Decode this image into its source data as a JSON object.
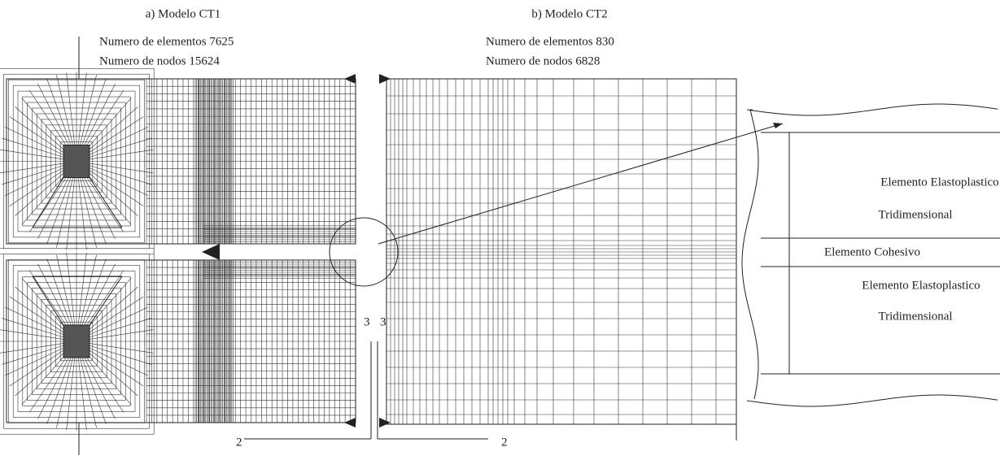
{
  "panel_a": {
    "title": "a) Modelo CT1",
    "elements": "Numero de elementos 7625",
    "nodes": "Numero de nodos 15624",
    "axis_vertical": "3",
    "axis_horizontal": "2"
  },
  "panel_b": {
    "title": "b) Modelo CT2",
    "elements": "Numero de elementos 830",
    "nodes": "Numero de nodos 6828",
    "axis_vertical": "3",
    "axis_horizontal": "2"
  },
  "detail": {
    "upper_label": "Elemento Elastoplastico",
    "upper_sublabel": "Tridimensional",
    "middle_label": "Elemento Cohesivo",
    "lower_label": "Elemento Elastoplastico",
    "lower_sublabel": "Tridimensional"
  }
}
